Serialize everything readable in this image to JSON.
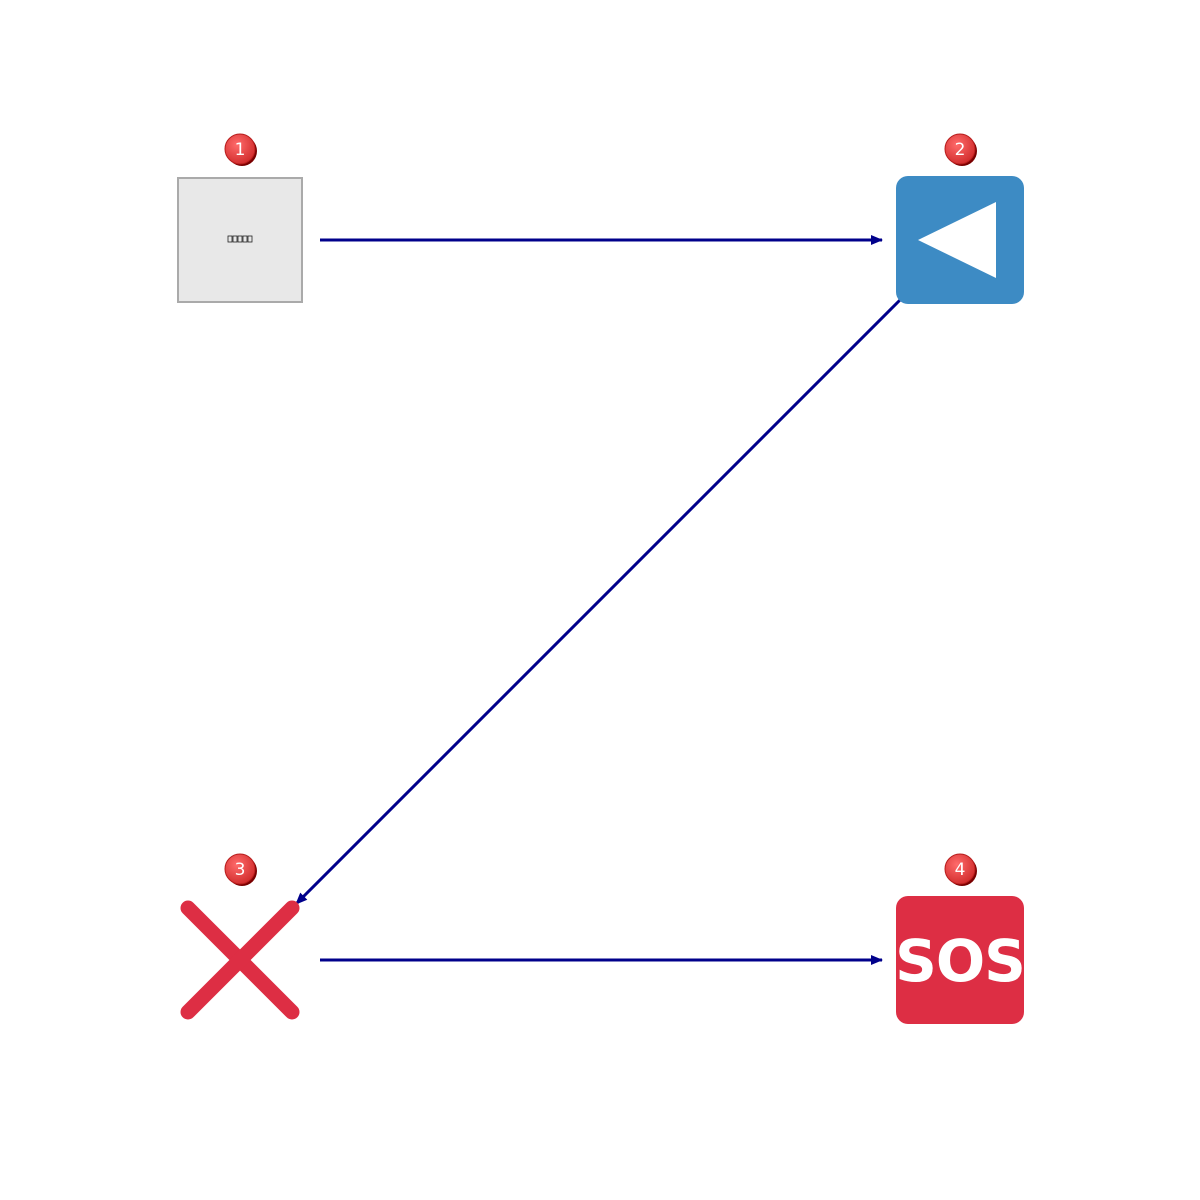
{
  "diagram": {
    "nodes": [
      {
        "id": "1",
        "badge": "1",
        "icon": "placeholder-box-icon",
        "caption": ""
      },
      {
        "id": "2",
        "badge": "2",
        "icon": "play-reverse-icon"
      },
      {
        "id": "3",
        "badge": "3",
        "icon": "close-x-icon"
      },
      {
        "id": "4",
        "badge": "4",
        "icon": "sos-icon",
        "text": "SOS"
      }
    ],
    "edges": [
      {
        "from": "1",
        "to": "2"
      },
      {
        "from": "2",
        "to": "3"
      },
      {
        "from": "3",
        "to": "4"
      }
    ],
    "colors": {
      "edge": "#00008b",
      "badge": "#e53935",
      "node2_fill": "#3d8bc4",
      "node3_stroke": "#dd2e44",
      "node4_fill": "#dd2e44",
      "node1_fill": "#e8e8e8",
      "node1_border": "#aaaaaa"
    }
  }
}
